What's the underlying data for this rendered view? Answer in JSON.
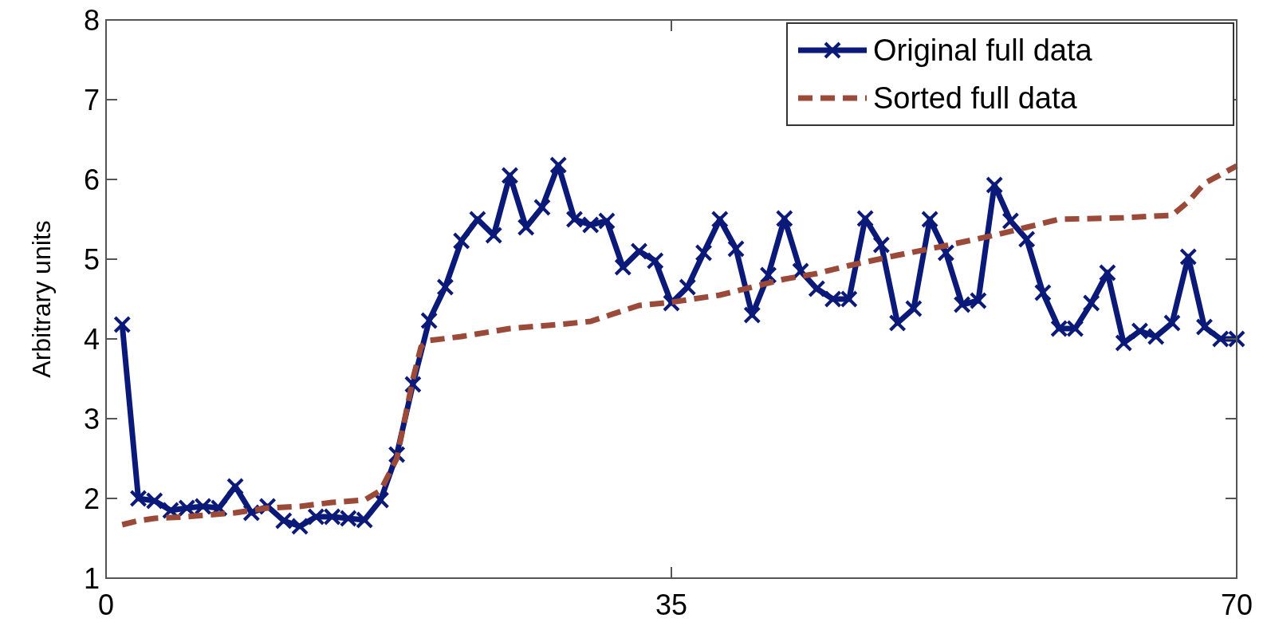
{
  "chart_data": {
    "type": "line",
    "ylabel": "Arbitrary units",
    "xlim": [
      0,
      70
    ],
    "xticks": [
      0,
      35,
      70
    ],
    "ylim": [
      1,
      8
    ],
    "yticks": [
      1,
      2,
      3,
      4,
      5,
      6,
      7,
      8
    ],
    "grid": false,
    "legend": "top right",
    "series": [
      {
        "name": "Original full data",
        "color": "#0b1a78",
        "marker": "cross",
        "line_style": "solid",
        "x": [
          1,
          2,
          3,
          4,
          5,
          6,
          7,
          8,
          9,
          10,
          11,
          12,
          13,
          14,
          15,
          16,
          17,
          18,
          19,
          20,
          21,
          22,
          23,
          24,
          25,
          26,
          27,
          28,
          29,
          30,
          31,
          32,
          33,
          34,
          35,
          36,
          37,
          38,
          39,
          40,
          41,
          42,
          43,
          44,
          45,
          46,
          47,
          48,
          49,
          50,
          51,
          52,
          53,
          54,
          55,
          56,
          57,
          58,
          59,
          60,
          61,
          62,
          63,
          64,
          65,
          66,
          67,
          68,
          69,
          70
        ],
        "values": [
          4.18,
          2.0,
          1.97,
          1.85,
          1.88,
          1.9,
          1.88,
          2.15,
          1.82,
          1.9,
          1.72,
          1.65,
          1.77,
          1.77,
          1.75,
          1.73,
          1.98,
          2.55,
          3.43,
          4.23,
          4.65,
          5.23,
          5.5,
          5.3,
          6.05,
          5.4,
          5.65,
          6.18,
          5.5,
          5.43,
          5.48,
          4.9,
          5.1,
          4.98,
          4.45,
          4.65,
          5.08,
          5.5,
          5.13,
          4.3,
          4.8,
          5.51,
          4.85,
          4.63,
          4.5,
          4.5,
          5.51,
          5.18,
          4.2,
          4.38,
          5.5,
          5.08,
          4.43,
          4.48,
          5.93,
          5.48,
          5.25,
          4.58,
          4.13,
          4.13,
          4.45,
          4.83,
          3.95,
          4.1,
          4.03,
          4.2,
          5.03,
          4.15,
          4.0,
          4.0
        ]
      },
      {
        "name": "Sorted full data",
        "color": "#9b4a3a",
        "marker": "none",
        "line_style": "dashed",
        "x": [
          1,
          2,
          3,
          5,
          8,
          10,
          12,
          14,
          16,
          17,
          18,
          19,
          19.5,
          20,
          22,
          25,
          28,
          30,
          33,
          35,
          38,
          40,
          42,
          44,
          46,
          49,
          52,
          55,
          57,
          59,
          63,
          66,
          67,
          68,
          70
        ],
        "values": [
          1.67,
          1.72,
          1.75,
          1.77,
          1.82,
          1.88,
          1.9,
          1.95,
          1.98,
          2.1,
          2.5,
          3.5,
          3.9,
          3.98,
          4.03,
          4.13,
          4.18,
          4.22,
          4.42,
          4.46,
          4.55,
          4.65,
          4.75,
          4.82,
          4.92,
          5.05,
          5.17,
          5.3,
          5.4,
          5.5,
          5.52,
          5.55,
          5.72,
          5.95,
          6.17
        ]
      }
    ]
  }
}
